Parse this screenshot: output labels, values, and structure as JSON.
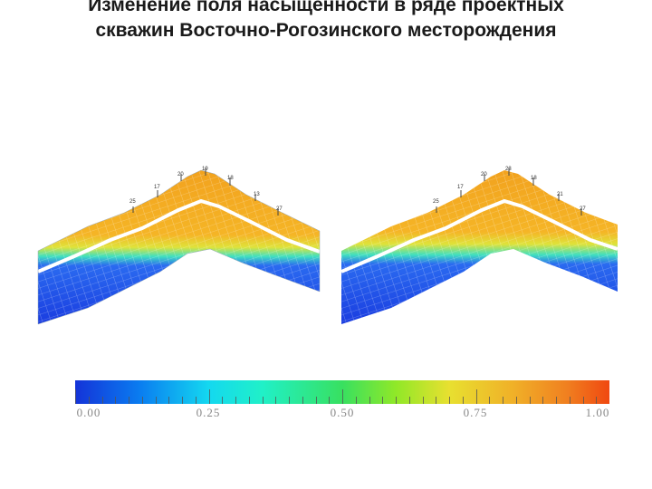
{
  "title": {
    "line1": "Изменение поля насыщенности в ряде проектных",
    "line2": "скважин Восточно-Рогозинского месторождения"
  },
  "models": {
    "left": {
      "well_labels": [
        "25",
        "17",
        "20",
        "19",
        "18",
        "13",
        "27"
      ]
    },
    "right": {
      "well_labels": [
        "25",
        "17",
        "20",
        "23",
        "18",
        "21",
        "27"
      ]
    }
  },
  "colorbar": {
    "tick_labels": [
      "0.00",
      "0.25",
      "0.50",
      "0.75",
      "1.00"
    ],
    "colors": [
      "#1433d8",
      "#14d8f0",
      "#38e060",
      "#e8e030",
      "#f04810"
    ]
  }
}
